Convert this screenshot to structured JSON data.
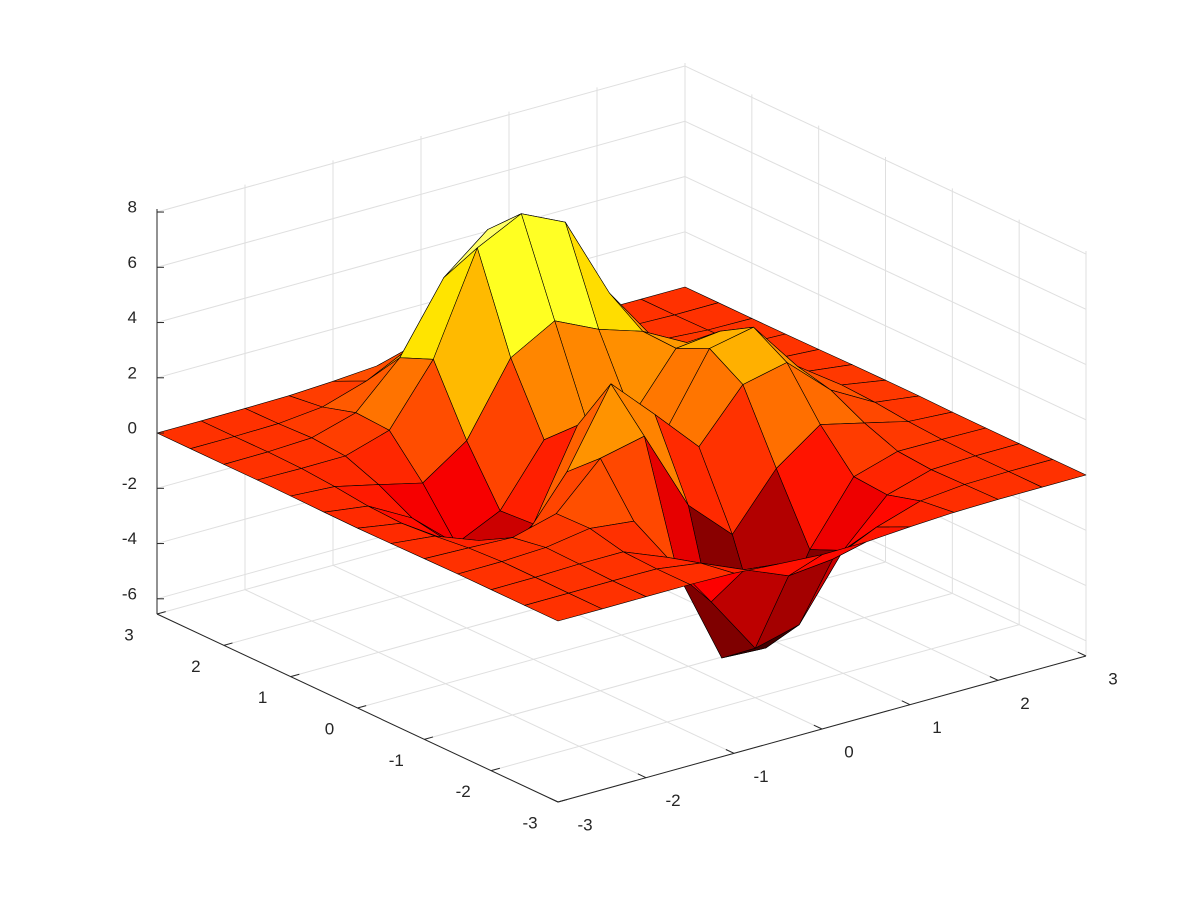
{
  "chart_data": {
    "type": "surface",
    "colormap": "hot",
    "grid": true,
    "x": [
      -3,
      -2.5,
      -2,
      -1.5,
      -1,
      -0.5,
      0,
      0.5,
      1,
      1.5,
      2,
      2.5,
      3
    ],
    "y": [
      -3,
      -2.5,
      -2,
      -1.5,
      -1,
      -0.5,
      0,
      0.5,
      1,
      1.5,
      2,
      2.5,
      3
    ],
    "z": [
      [
        0,
        0,
        0,
        0,
        -0.03,
        -0.14,
        -0.24,
        -0.22,
        -0.11,
        -0.03,
        0,
        0,
        0
      ],
      [
        0,
        0,
        0.01,
        0,
        -0.23,
        -0.91,
        -1.57,
        -1.41,
        -0.69,
        -0.18,
        -0.03,
        0,
        0
      ],
      [
        0,
        0.01,
        0.05,
        0.05,
        -0.59,
        -2.64,
        -4.76,
        -4.35,
        -2.1,
        -0.53,
        -0.06,
        0,
        0
      ],
      [
        0,
        0.01,
        0.08,
        0.33,
        0.15,
        -2.19,
        -5.68,
        -5.76,
        -2.64,
        -0.44,
        0.04,
        0.03,
        0
      ],
      [
        -0.01,
        -0.06,
        -0.13,
        0.3,
        1.86,
        2.22,
        -0.72,
        -2.22,
        -0.27,
        0.88,
        0.5,
        0.11,
        0.01
      ],
      [
        -0.03,
        -0.2,
        -0.8,
        -1.21,
        0.8,
        3.55,
        2,
        0.39,
        2.2,
        2.56,
        1.12,
        0.24,
        0.03
      ],
      [
        -0.04,
        -0.3,
        -1.33,
        -2.77,
        -1.65,
        1.48,
        0.98,
        0.38,
        2.94,
        3.27,
        1.41,
        0.3,
        0.03
      ],
      [
        -0.03,
        -0.25,
        -1.12,
        -2.49,
        -1.74,
        0.39,
        0.46,
        0.37,
        2.38,
        2.56,
        1.09,
        0.23,
        0.03
      ],
      [
        -0.01,
        -0.11,
        -0.48,
        -0.86,
        0.23,
        2.79,
        3.69,
        2.94,
        2.43,
        1.58,
        0.58,
        0.11,
        0.01
      ],
      [
        0,
        -0.02,
        -0.01,
        0.48,
        2.61,
        6.2,
        7,
        6.25,
        3.25,
        1.19,
        0.29,
        0.05,
        0
      ],
      [
        0,
        0.01,
        0.08,
        0.55,
        2.1,
        4.56,
        5.86,
        4.57,
        2.21,
        0.68,
        0.13,
        0.02,
        0
      ],
      [
        0,
        0,
        0.03,
        0.19,
        0.69,
        1.47,
        1.88,
        1.47,
        0.7,
        0.2,
        0.04,
        0,
        0
      ],
      [
        0,
        0,
        0.01,
        0.03,
        0.11,
        0.23,
        0.3,
        0.23,
        0.11,
        0.03,
        0.01,
        0,
        0
      ]
    ],
    "xlim": [
      -3,
      3
    ],
    "ylim": [
      -3,
      3
    ],
    "zlim": [
      -6.55,
      8.11
    ],
    "xticks": [
      -3,
      -2,
      -1,
      0,
      1,
      2,
      3
    ],
    "yticks": [
      -3,
      -2,
      -1,
      0,
      1,
      2,
      3
    ],
    "zticks": [
      -6,
      -4,
      -2,
      0,
      2,
      4,
      6,
      8
    ]
  }
}
